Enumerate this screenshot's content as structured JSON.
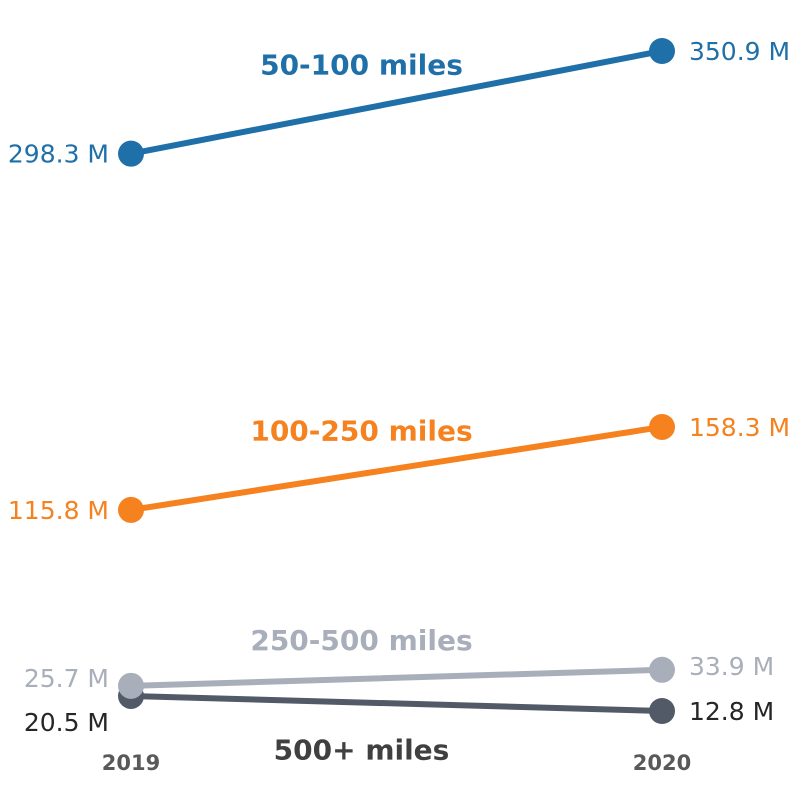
{
  "chart_data": {
    "type": "line",
    "categories": [
      "2019",
      "2020"
    ],
    "series": [
      {
        "name": "50-100 miles",
        "values": [
          298.3,
          350.9
        ],
        "labels": [
          "298.3 M",
          "350.9 M"
        ],
        "color": "#1f6fa8",
        "label_color": "#1f6fa8",
        "label_weight": "bold"
      },
      {
        "name": "100-250 miles",
        "values": [
          115.8,
          158.3
        ],
        "labels": [
          "115.8 M",
          "158.3 M"
        ],
        "color": "#f5821f",
        "label_color": "#f5821f",
        "label_weight": "bold"
      },
      {
        "name": "250-500 miles",
        "values": [
          25.7,
          33.9
        ],
        "labels": [
          "25.7 M",
          "33.9 M"
        ],
        "color": "#a9afba",
        "label_color": "#a9afba",
        "label_weight": "bold"
      },
      {
        "name": "500+ miles",
        "values": [
          20.5,
          12.8
        ],
        "labels": [
          "20.5 M",
          "12.8 M"
        ],
        "color": "#525a67",
        "label_color": "#404040",
        "label_weight": "bold"
      }
    ],
    "ylim": [
      0,
      380
    ],
    "grid": false,
    "legend": "direct labels on lines"
  }
}
